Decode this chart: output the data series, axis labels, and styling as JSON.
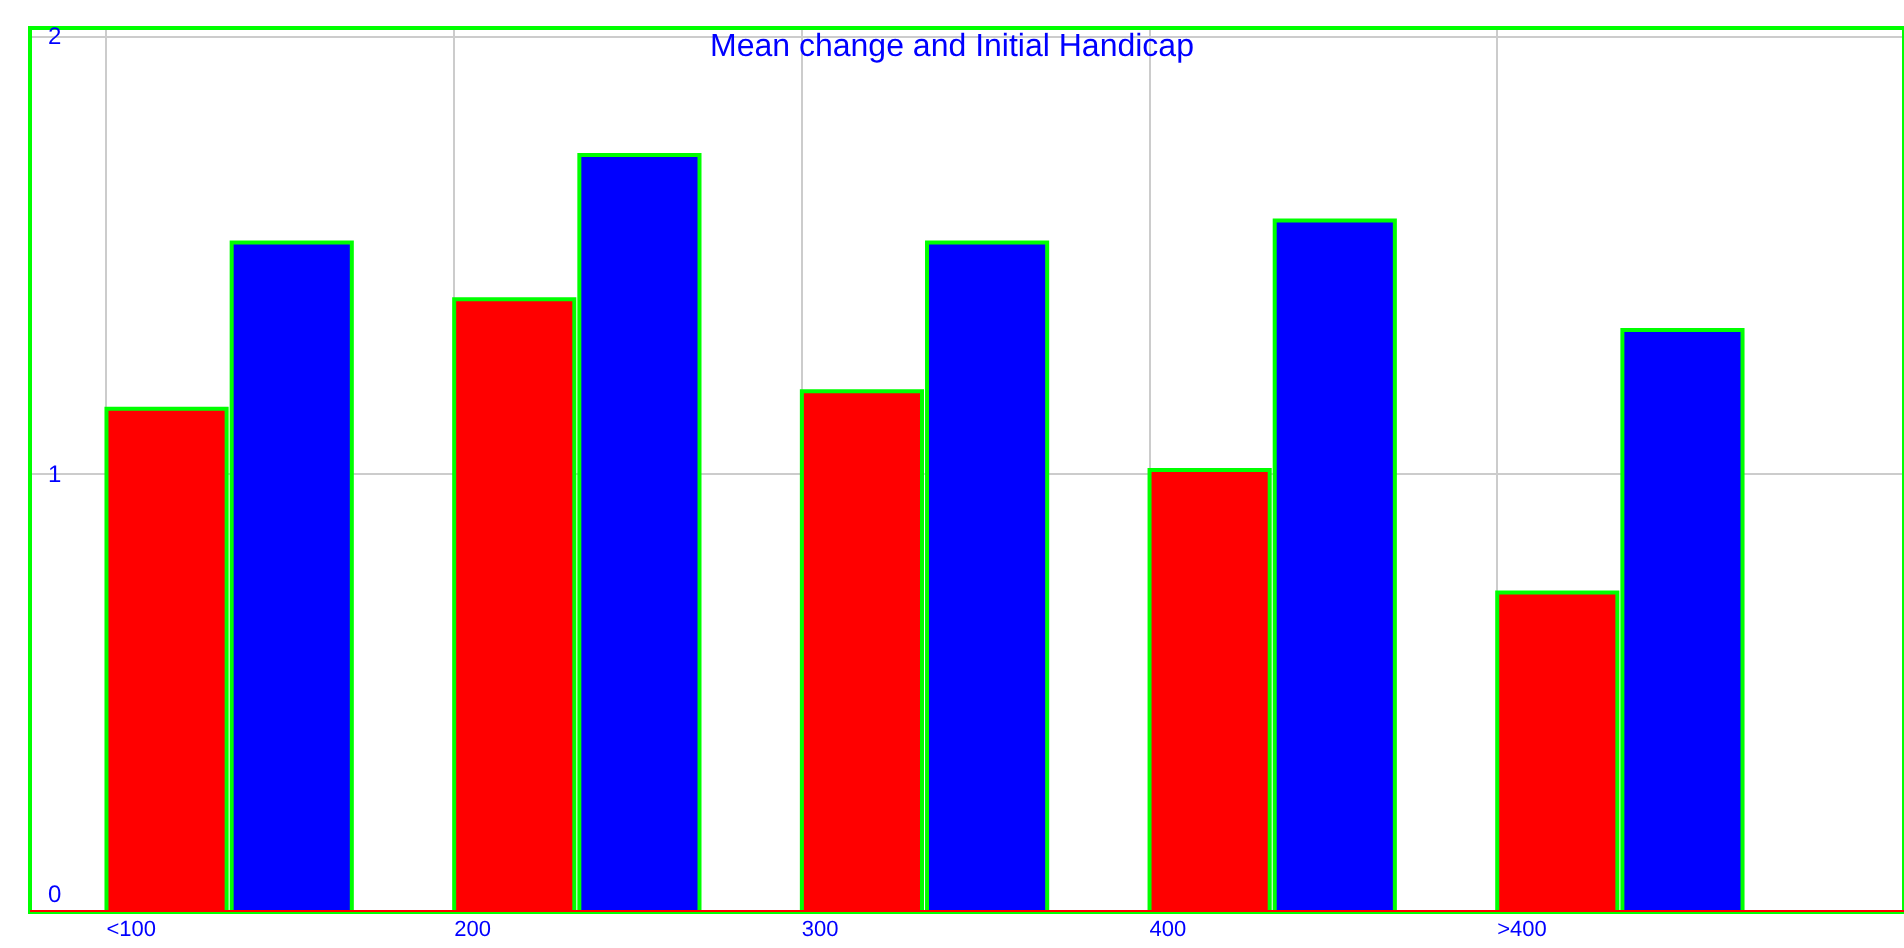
{
  "chart_data": {
    "type": "bar",
    "title": "Mean change and Initial Handicap",
    "categories": [
      "<100",
      "200",
      "300",
      "400",
      ">400"
    ],
    "series": [
      {
        "color": "#ff0000",
        "values": [
          1.15,
          1.4,
          1.19,
          1.01,
          0.73
        ]
      },
      {
        "color": "#0000ff",
        "values": [
          1.53,
          1.73,
          1.53,
          1.58,
          1.33
        ]
      }
    ],
    "ylim": [
      0,
      2.02
    ],
    "yticks": [
      0,
      1,
      2
    ],
    "grid": true
  }
}
